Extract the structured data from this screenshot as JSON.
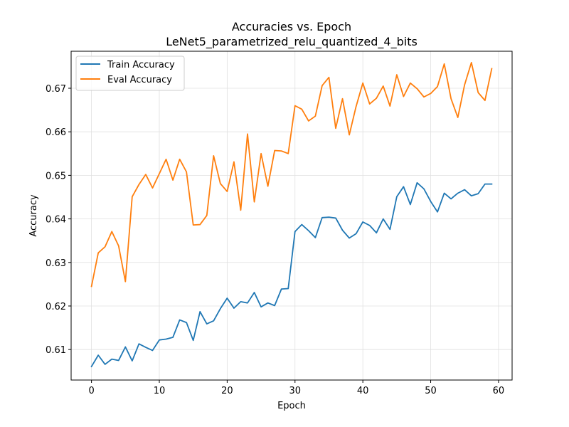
{
  "chart_data": {
    "type": "line",
    "title": "Accuracies vs. Epoch",
    "subtitle": "LeNet5_parametrized_relu_quantized_4_bits",
    "xlabel": "Epoch",
    "ylabel": "Accuracy",
    "xlim": [
      -3,
      62
    ],
    "ylim": [
      0.603,
      0.6785
    ],
    "xticks": [
      0,
      10,
      20,
      30,
      40,
      50,
      60
    ],
    "yticks": [
      0.61,
      0.62,
      0.63,
      0.64,
      0.65,
      0.66,
      0.67
    ],
    "ytick_labels": [
      "0.61",
      "0.62",
      "0.63",
      "0.64",
      "0.65",
      "0.66",
      "0.67"
    ],
    "grid": true,
    "legend_position": "top-left",
    "x": [
      0,
      1,
      2,
      3,
      4,
      5,
      6,
      7,
      8,
      9,
      10,
      11,
      12,
      13,
      14,
      15,
      16,
      17,
      18,
      19,
      20,
      21,
      22,
      23,
      24,
      25,
      26,
      27,
      28,
      29,
      30,
      31,
      32,
      33,
      34,
      35,
      36,
      37,
      38,
      39,
      40,
      41,
      42,
      43,
      44,
      45,
      46,
      47,
      48,
      49,
      50,
      51,
      52,
      53,
      54,
      55,
      56,
      57,
      58,
      59
    ],
    "series": [
      {
        "name": "Train Accuracy",
        "color": "#1f77b4",
        "values": [
          0.6061,
          0.6087,
          0.6066,
          0.6078,
          0.6075,
          0.6106,
          0.6074,
          0.6113,
          0.6105,
          0.6098,
          0.6122,
          0.6124,
          0.6128,
          0.6168,
          0.6162,
          0.6121,
          0.6187,
          0.6159,
          0.6166,
          0.6194,
          0.6218,
          0.6195,
          0.621,
          0.6207,
          0.6231,
          0.6198,
          0.6207,
          0.6201,
          0.6239,
          0.624,
          0.6371,
          0.6387,
          0.6373,
          0.6357,
          0.6403,
          0.6404,
          0.6402,
          0.6374,
          0.6356,
          0.6366,
          0.6393,
          0.6385,
          0.6368,
          0.64,
          0.6376,
          0.6451,
          0.6474,
          0.6433,
          0.6483,
          0.6469,
          0.644,
          0.6416,
          0.6459,
          0.6446,
          0.6459,
          0.6467,
          0.6453,
          0.6458,
          0.648,
          0.648
        ]
      },
      {
        "name": "Eval Accuracy",
        "color": "#ff7f0e",
        "values": [
          0.6245,
          0.6322,
          0.6336,
          0.6371,
          0.6338,
          0.6256,
          0.6451,
          0.6479,
          0.6502,
          0.6471,
          0.6504,
          0.6537,
          0.6489,
          0.6537,
          0.6508,
          0.6386,
          0.6387,
          0.6408,
          0.6545,
          0.6481,
          0.6463,
          0.6531,
          0.642,
          0.6595,
          0.6439,
          0.655,
          0.6475,
          0.6557,
          0.6556,
          0.655,
          0.666,
          0.6652,
          0.6625,
          0.6636,
          0.6706,
          0.6725,
          0.6608,
          0.6676,
          0.6593,
          0.6658,
          0.6712,
          0.6664,
          0.6677,
          0.6705,
          0.6659,
          0.6731,
          0.6681,
          0.6712,
          0.6699,
          0.668,
          0.6688,
          0.6704,
          0.6756,
          0.6676,
          0.6633,
          0.6708,
          0.6759,
          0.669,
          0.6672,
          0.6745
        ]
      }
    ]
  }
}
